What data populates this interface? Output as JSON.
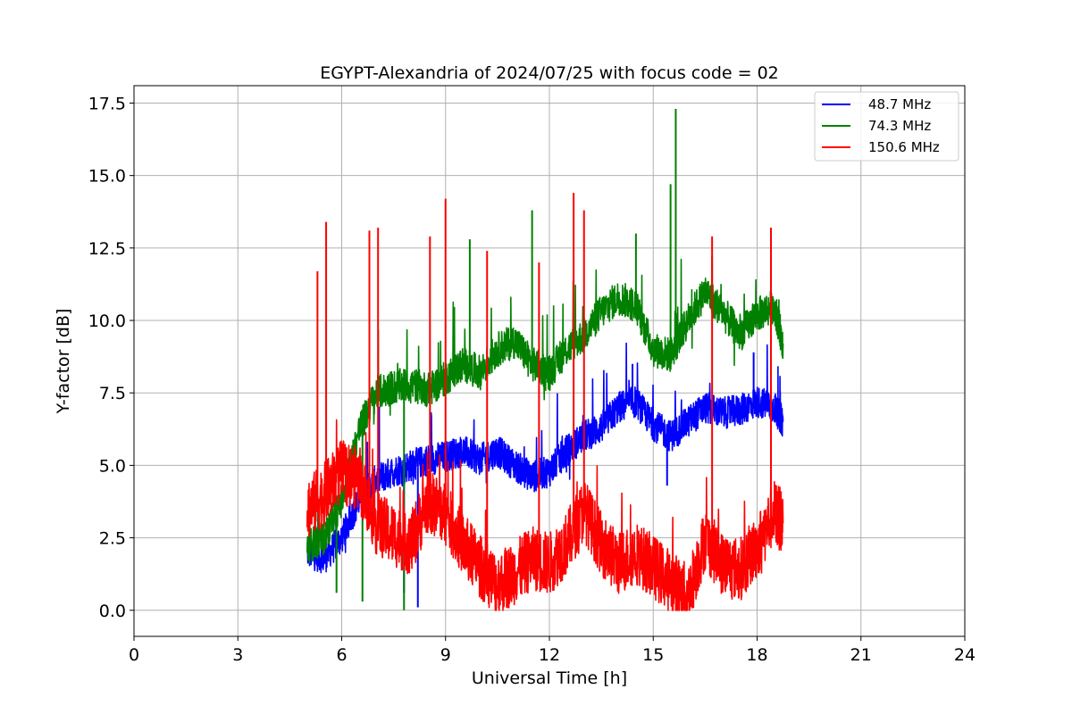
{
  "chart_data": {
    "type": "line",
    "title": "EGYPT-Alexandria of 2024/07/25 with focus code = 02",
    "xlabel": "Universal Time [h]",
    "ylabel": "Y-factor [dB]",
    "xlim": [
      0,
      24
    ],
    "ylim": [
      -0.9,
      18.1
    ],
    "xticks": [
      0,
      3,
      6,
      9,
      12,
      15,
      18,
      21,
      24
    ],
    "yticks": [
      0.0,
      2.5,
      5.0,
      7.5,
      10.0,
      12.5,
      15.0,
      17.5
    ],
    "xtick_labels": [
      "0",
      "3",
      "6",
      "9",
      "12",
      "15",
      "18",
      "21",
      "24"
    ],
    "ytick_labels": [
      "0.0",
      "2.5",
      "5.0",
      "7.5",
      "10.0",
      "12.5",
      "15.0",
      "17.5"
    ],
    "grid": true,
    "legend_position": "top-right",
    "series": [
      {
        "name": "48.7 MHz",
        "color": "#0000ff",
        "x": [
          5.0,
          5.5,
          6.0,
          6.5,
          7.0,
          7.5,
          8.0,
          8.5,
          9.0,
          9.5,
          10.0,
          10.5,
          11.0,
          11.5,
          12.0,
          12.5,
          13.0,
          13.5,
          14.0,
          14.5,
          15.0,
          15.5,
          16.0,
          16.5,
          17.0,
          17.5,
          18.0,
          18.5,
          18.75
        ],
        "values": [
          2.0,
          1.8,
          2.5,
          3.8,
          4.5,
          4.8,
          5.0,
          5.2,
          5.3,
          5.5,
          5.2,
          5.5,
          5.0,
          4.6,
          4.8,
          5.5,
          6.0,
          6.3,
          7.0,
          7.2,
          6.4,
          6.0,
          6.5,
          7.0,
          6.8,
          6.9,
          7.2,
          7.0,
          6.5
        ],
        "spikes": [
          [
            8.2,
            0.1
          ],
          [
            7.8,
            0.6
          ],
          [
            14.4,
            8.5
          ],
          [
            15.4,
            4.3
          ],
          [
            17.9,
            8.9
          ]
        ]
      },
      {
        "name": "74.3 MHz",
        "color": "#008000",
        "x": [
          5.0,
          5.5,
          6.0,
          6.5,
          7.0,
          7.5,
          8.0,
          8.5,
          9.0,
          9.5,
          10.0,
          10.5,
          11.0,
          11.5,
          12.0,
          12.5,
          13.0,
          13.5,
          14.0,
          14.5,
          15.0,
          15.5,
          16.0,
          16.5,
          17.0,
          17.5,
          18.0,
          18.5,
          18.75
        ],
        "values": [
          2.2,
          2.5,
          3.8,
          6.2,
          7.5,
          7.7,
          7.8,
          7.6,
          8.0,
          8.5,
          8.2,
          9.0,
          9.3,
          8.5,
          8.2,
          9.0,
          9.5,
          10.3,
          10.8,
          10.5,
          9.0,
          8.8,
          10.0,
          11.0,
          10.3,
          9.5,
          10.2,
          10.5,
          9.2
        ],
        "spikes": [
          [
            5.85,
            0.6
          ],
          [
            6.6,
            0.3
          ],
          [
            7.8,
            0.0
          ],
          [
            9.7,
            12.8
          ],
          [
            11.5,
            13.8
          ],
          [
            14.5,
            13.0
          ],
          [
            15.5,
            14.7
          ],
          [
            15.65,
            17.3
          ],
          [
            16.7,
            12.2
          ]
        ]
      },
      {
        "name": "150.6 MHz",
        "color": "#ff0000",
        "x": [
          5.0,
          5.5,
          6.0,
          6.5,
          7.0,
          7.5,
          8.0,
          8.5,
          9.0,
          9.5,
          10.0,
          10.5,
          11.0,
          11.5,
          12.0,
          12.5,
          13.0,
          13.5,
          14.0,
          14.5,
          15.0,
          15.5,
          16.0,
          16.5,
          17.0,
          17.5,
          18.0,
          18.5,
          18.75
        ],
        "values": [
          3.5,
          4.0,
          4.8,
          4.5,
          3.0,
          2.6,
          2.3,
          3.8,
          3.3,
          2.3,
          1.5,
          0.9,
          1.3,
          1.8,
          1.6,
          2.3,
          3.5,
          2.3,
          1.6,
          2.0,
          1.5,
          1.0,
          0.5,
          2.5,
          1.6,
          1.4,
          2.2,
          3.4,
          3.0
        ],
        "spikes": [
          [
            5.3,
            11.7
          ],
          [
            5.55,
            13.4
          ],
          [
            6.8,
            13.1
          ],
          [
            7.05,
            13.2
          ],
          [
            8.55,
            12.9
          ],
          [
            9.0,
            14.2
          ],
          [
            10.2,
            12.4
          ],
          [
            11.7,
            12.0
          ],
          [
            12.7,
            14.4
          ],
          [
            13.0,
            13.8
          ],
          [
            16.7,
            12.9
          ],
          [
            18.4,
            13.2
          ]
        ]
      }
    ]
  }
}
